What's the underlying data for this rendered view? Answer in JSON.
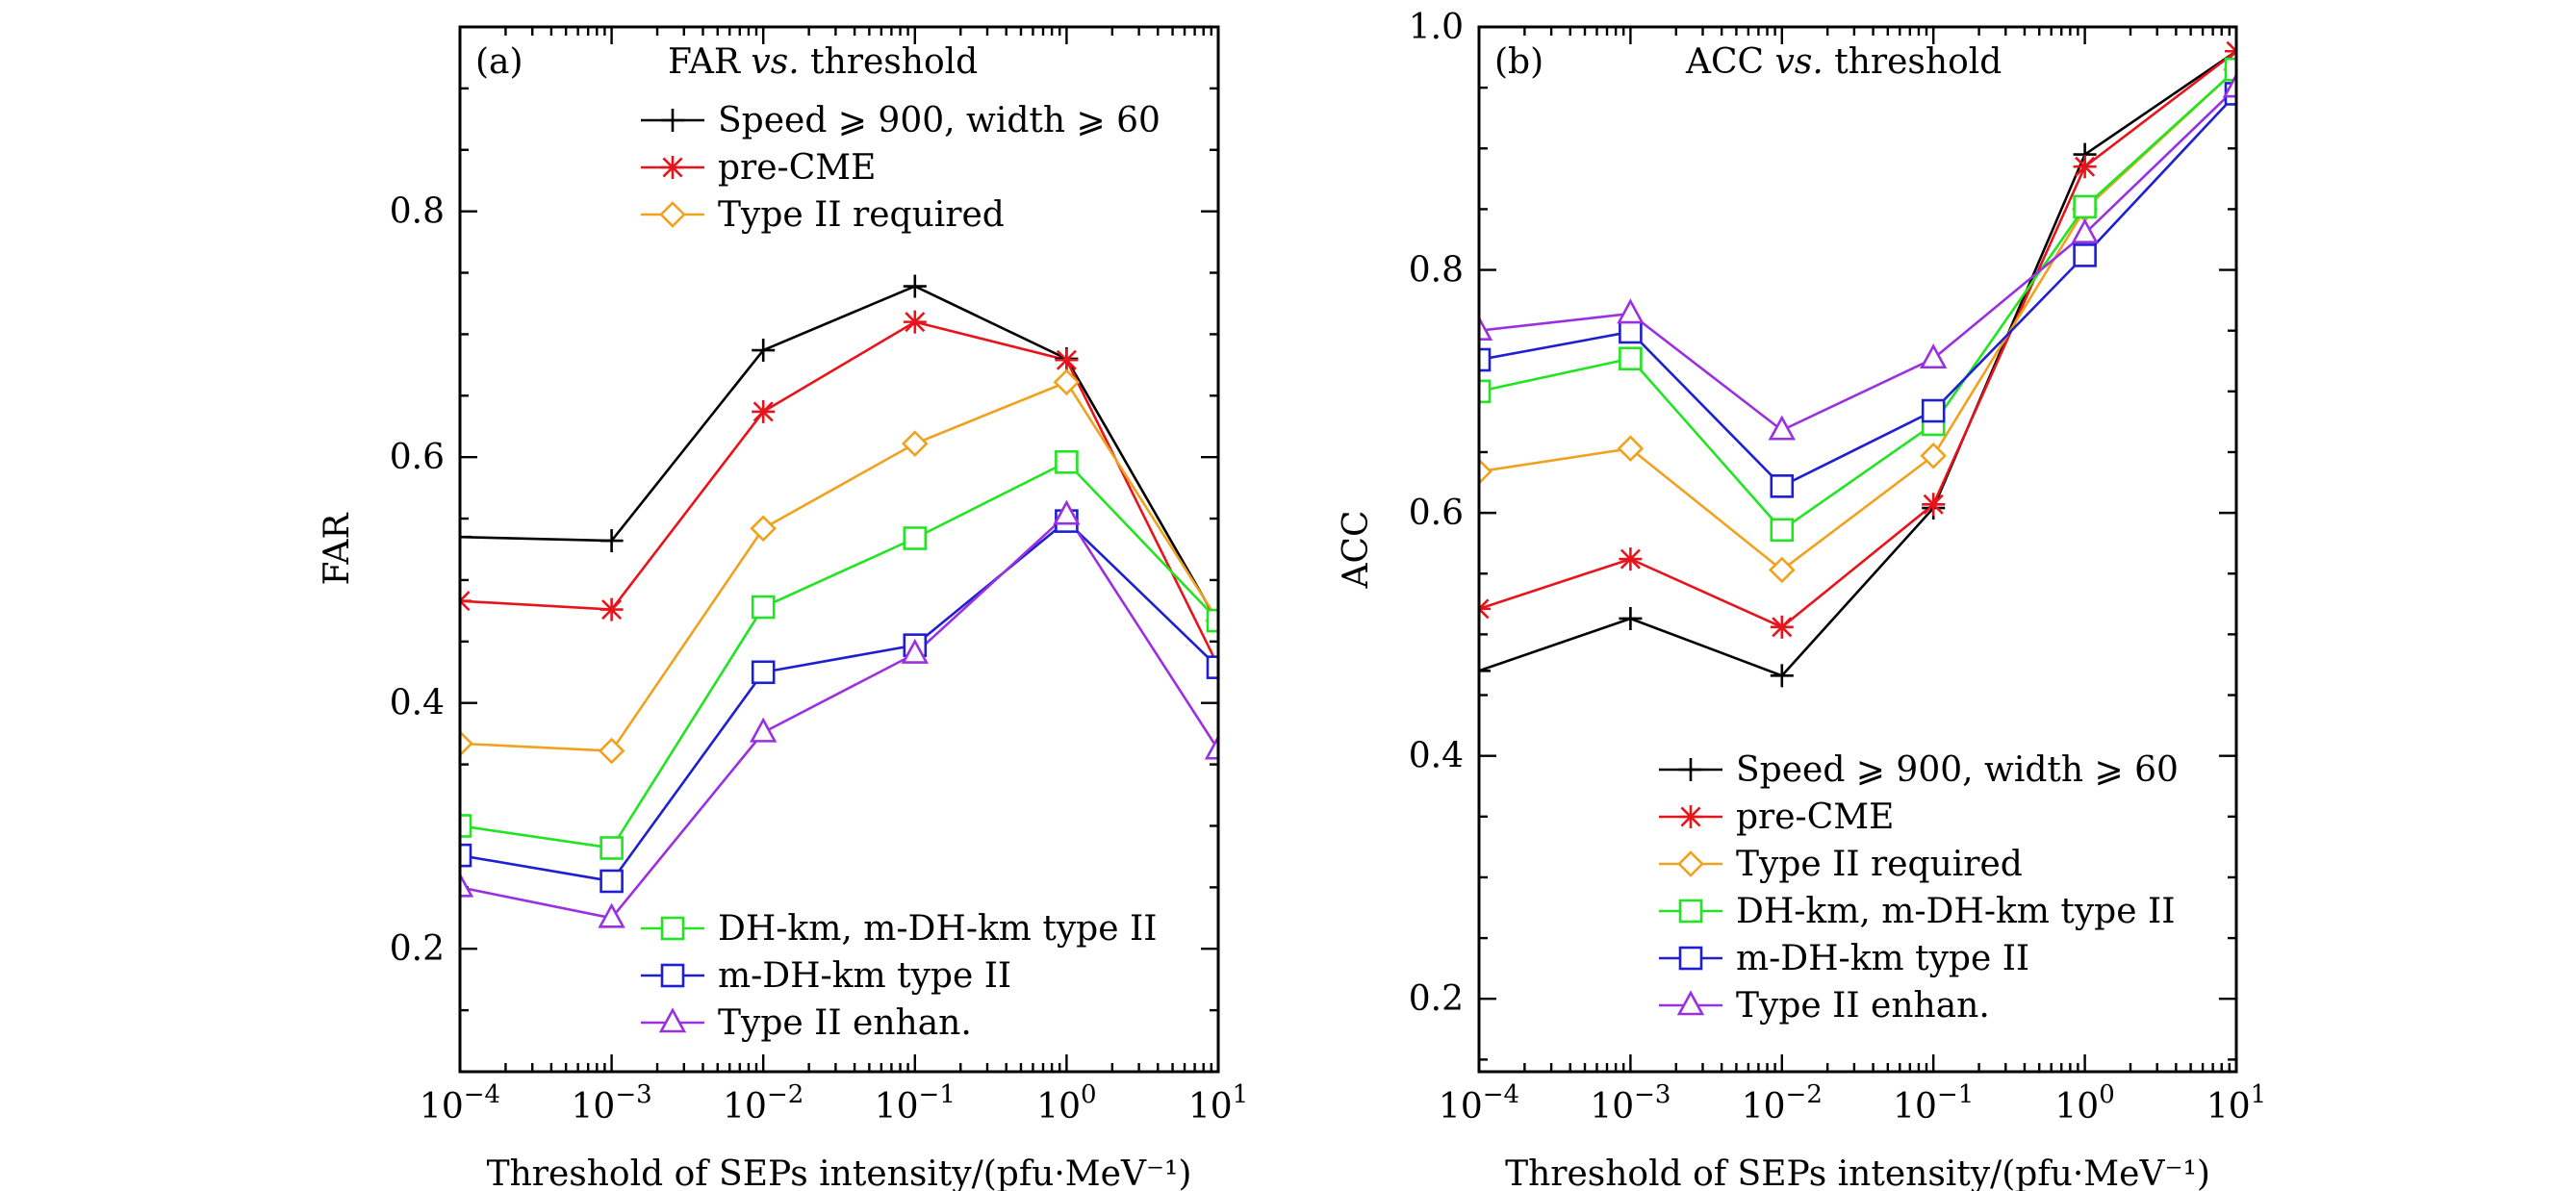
{
  "chart_data": [
    {
      "type": "line",
      "panel_label": "(a)",
      "title": "FAR vs. threshold",
      "title_main": "FAR",
      "title_vs": "vs.",
      "title_rest": "threshold",
      "xlabel": "Threshold of SEPs intensity/(pfu·MeV⁻¹)",
      "ylabel": "FAR",
      "x_scale": "log",
      "x": [
        0.0001,
        0.001,
        0.01,
        0.1,
        1,
        10
      ],
      "x_tick_labels": [
        {
          "base": "10",
          "exp": "−4"
        },
        {
          "base": "10",
          "exp": "−3"
        },
        {
          "base": "10",
          "exp": "−2"
        },
        {
          "base": "10",
          "exp": "−1"
        },
        {
          "base": "10",
          "exp": "0"
        },
        {
          "base": "10",
          "exp": "1"
        }
      ],
      "ylim": [
        0.1,
        0.95
      ],
      "y_ticks": [
        0.2,
        0.4,
        0.6,
        0.8
      ],
      "y_tick_labels": [
        "0.2",
        "0.4",
        "0.6",
        "0.8"
      ],
      "series": [
        {
          "name": "Speed ⩾ 900, width ⩾ 60",
          "color": "#000000",
          "marker": "plus",
          "values": [
            0.535,
            0.532,
            0.687,
            0.739,
            0.68,
            0.465
          ]
        },
        {
          "name": "pre-CME",
          "color": "#e8141c",
          "marker": "asterisk",
          "values": [
            0.483,
            0.476,
            0.637,
            0.71,
            0.679,
            0.43
          ]
        },
        {
          "name": "Type II required",
          "color": "#f0a21e",
          "marker": "diamond",
          "values": [
            0.367,
            0.361,
            0.542,
            0.611,
            0.661,
            0.467
          ]
        },
        {
          "name": "DH-km, m-DH-km type II",
          "color": "#22e422",
          "marker": "square",
          "values": [
            0.3,
            0.282,
            0.478,
            0.534,
            0.596,
            0.467
          ]
        },
        {
          "name": "m-DH-km type II",
          "color": "#1f1fd2",
          "marker": "square",
          "values": [
            0.276,
            0.255,
            0.425,
            0.447,
            0.548,
            0.429
          ]
        },
        {
          "name": "Type II enhan.",
          "color": "#9a30e0",
          "marker": "triangle",
          "values": [
            0.25,
            0.225,
            0.376,
            0.44,
            0.553,
            0.362
          ]
        }
      ],
      "legend_groups": [
        {
          "position": "top",
          "series_indices": [
            0,
            1,
            2
          ]
        },
        {
          "position": "bottom",
          "series_indices": [
            3,
            4,
            5
          ]
        }
      ]
    },
    {
      "type": "line",
      "panel_label": "(b)",
      "title": "ACC vs. threshold",
      "title_main": "ACC",
      "title_vs": "vs.",
      "title_rest": "threshold",
      "xlabel": "Threshold of SEPs intensity/(pfu·MeV⁻¹)",
      "ylabel": "ACC",
      "x_scale": "log",
      "x": [
        0.0001,
        0.001,
        0.01,
        0.1,
        1,
        10
      ],
      "x_tick_labels": [
        {
          "base": "10",
          "exp": "−4"
        },
        {
          "base": "10",
          "exp": "−3"
        },
        {
          "base": "10",
          "exp": "−2"
        },
        {
          "base": "10",
          "exp": "−1"
        },
        {
          "base": "10",
          "exp": "0"
        },
        {
          "base": "10",
          "exp": "1"
        }
      ],
      "ylim": [
        0.14,
        1.0
      ],
      "y_ticks": [
        0.2,
        0.4,
        0.6,
        0.8,
        1.0
      ],
      "y_tick_labels": [
        "0.2",
        "0.4",
        "0.6",
        "0.8",
        "1.0"
      ],
      "series": [
        {
          "name": "Speed ⩾ 900, width ⩾ 60",
          "color": "#000000",
          "marker": "plus",
          "values": [
            0.47,
            0.513,
            0.466,
            0.604,
            0.895,
            0.98
          ]
        },
        {
          "name": "pre-CME",
          "color": "#e8141c",
          "marker": "asterisk",
          "values": [
            0.521,
            0.562,
            0.506,
            0.607,
            0.885,
            0.98
          ]
        },
        {
          "name": "Type II required",
          "color": "#f0a21e",
          "marker": "diamond",
          "values": [
            0.634,
            0.653,
            0.553,
            0.647,
            0.85,
            0.965
          ]
        },
        {
          "name": "DH-km, m-DH-km type II",
          "color": "#22e422",
          "marker": "square",
          "values": [
            0.7,
            0.727,
            0.586,
            0.673,
            0.852,
            0.965
          ]
        },
        {
          "name": "m-DH-km type II",
          "color": "#1f1fd2",
          "marker": "square",
          "values": [
            0.726,
            0.749,
            0.622,
            0.684,
            0.812,
            0.945
          ]
        },
        {
          "name": "Type II enhan.",
          "color": "#9a30e0",
          "marker": "triangle",
          "values": [
            0.75,
            0.764,
            0.668,
            0.727,
            0.83,
            0.95
          ]
        }
      ],
      "legend_groups": [
        {
          "position": "bottom",
          "series_indices": [
            0,
            1,
            2,
            3,
            4,
            5
          ]
        }
      ]
    }
  ]
}
